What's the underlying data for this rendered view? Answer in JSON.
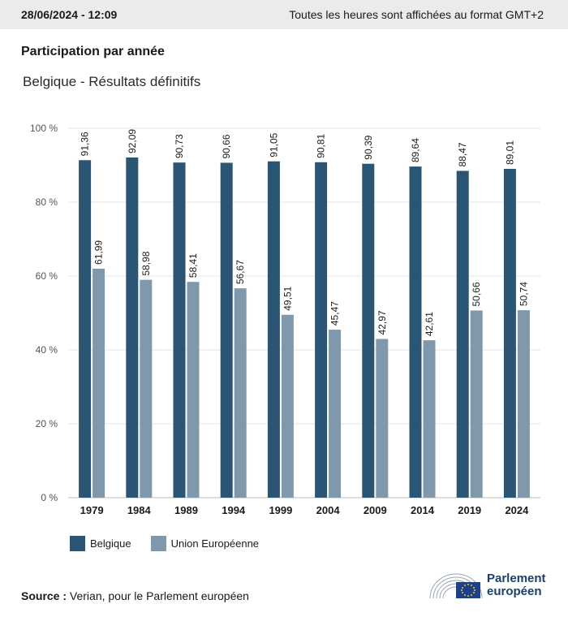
{
  "header": {
    "date": "28/06/2024 - 12:09",
    "timezone_note": "Toutes les heures sont affichées au format GMT+2"
  },
  "section_title": "Participation par année",
  "subtitle": "Belgique - Résultats définitifs",
  "legend": {
    "belgique": "Belgique",
    "ue": "Union Européenne"
  },
  "source": {
    "label": "Source :",
    "text": "Verian, pour le Parlement européen"
  },
  "logo": {
    "line1": "Parlement",
    "line2": "européen"
  },
  "colors": {
    "belgique": "#2a5574",
    "ue": "#7f98ac"
  },
  "chart_data": {
    "type": "bar",
    "categories": [
      "1979",
      "1984",
      "1989",
      "1994",
      "1999",
      "2004",
      "2009",
      "2014",
      "2019",
      "2024"
    ],
    "series": [
      {
        "name": "Belgique",
        "values": [
          91.36,
          92.09,
          90.73,
          90.66,
          91.05,
          90.81,
          90.39,
          89.64,
          88.47,
          89.01
        ],
        "labels": [
          "91,36",
          "92,09",
          "90,73",
          "90,66",
          "91,05",
          "90,81",
          "90,39",
          "89,64",
          "88,47",
          "89,01"
        ]
      },
      {
        "name": "Union Européenne",
        "values": [
          61.99,
          58.98,
          58.41,
          56.67,
          49.51,
          45.47,
          42.97,
          42.61,
          50.66,
          50.74
        ],
        "labels": [
          "61,99",
          "58,98",
          "58,41",
          "56,67",
          "49,51",
          "45,47",
          "42,97",
          "42,61",
          "50,66",
          "50,74"
        ]
      }
    ],
    "yticks": [
      "0 %",
      "20 %",
      "40 %",
      "60 %",
      "80 %",
      "100 %"
    ],
    "ylim": [
      0,
      100
    ],
    "grid": true,
    "legend_position": "bottom-left"
  }
}
